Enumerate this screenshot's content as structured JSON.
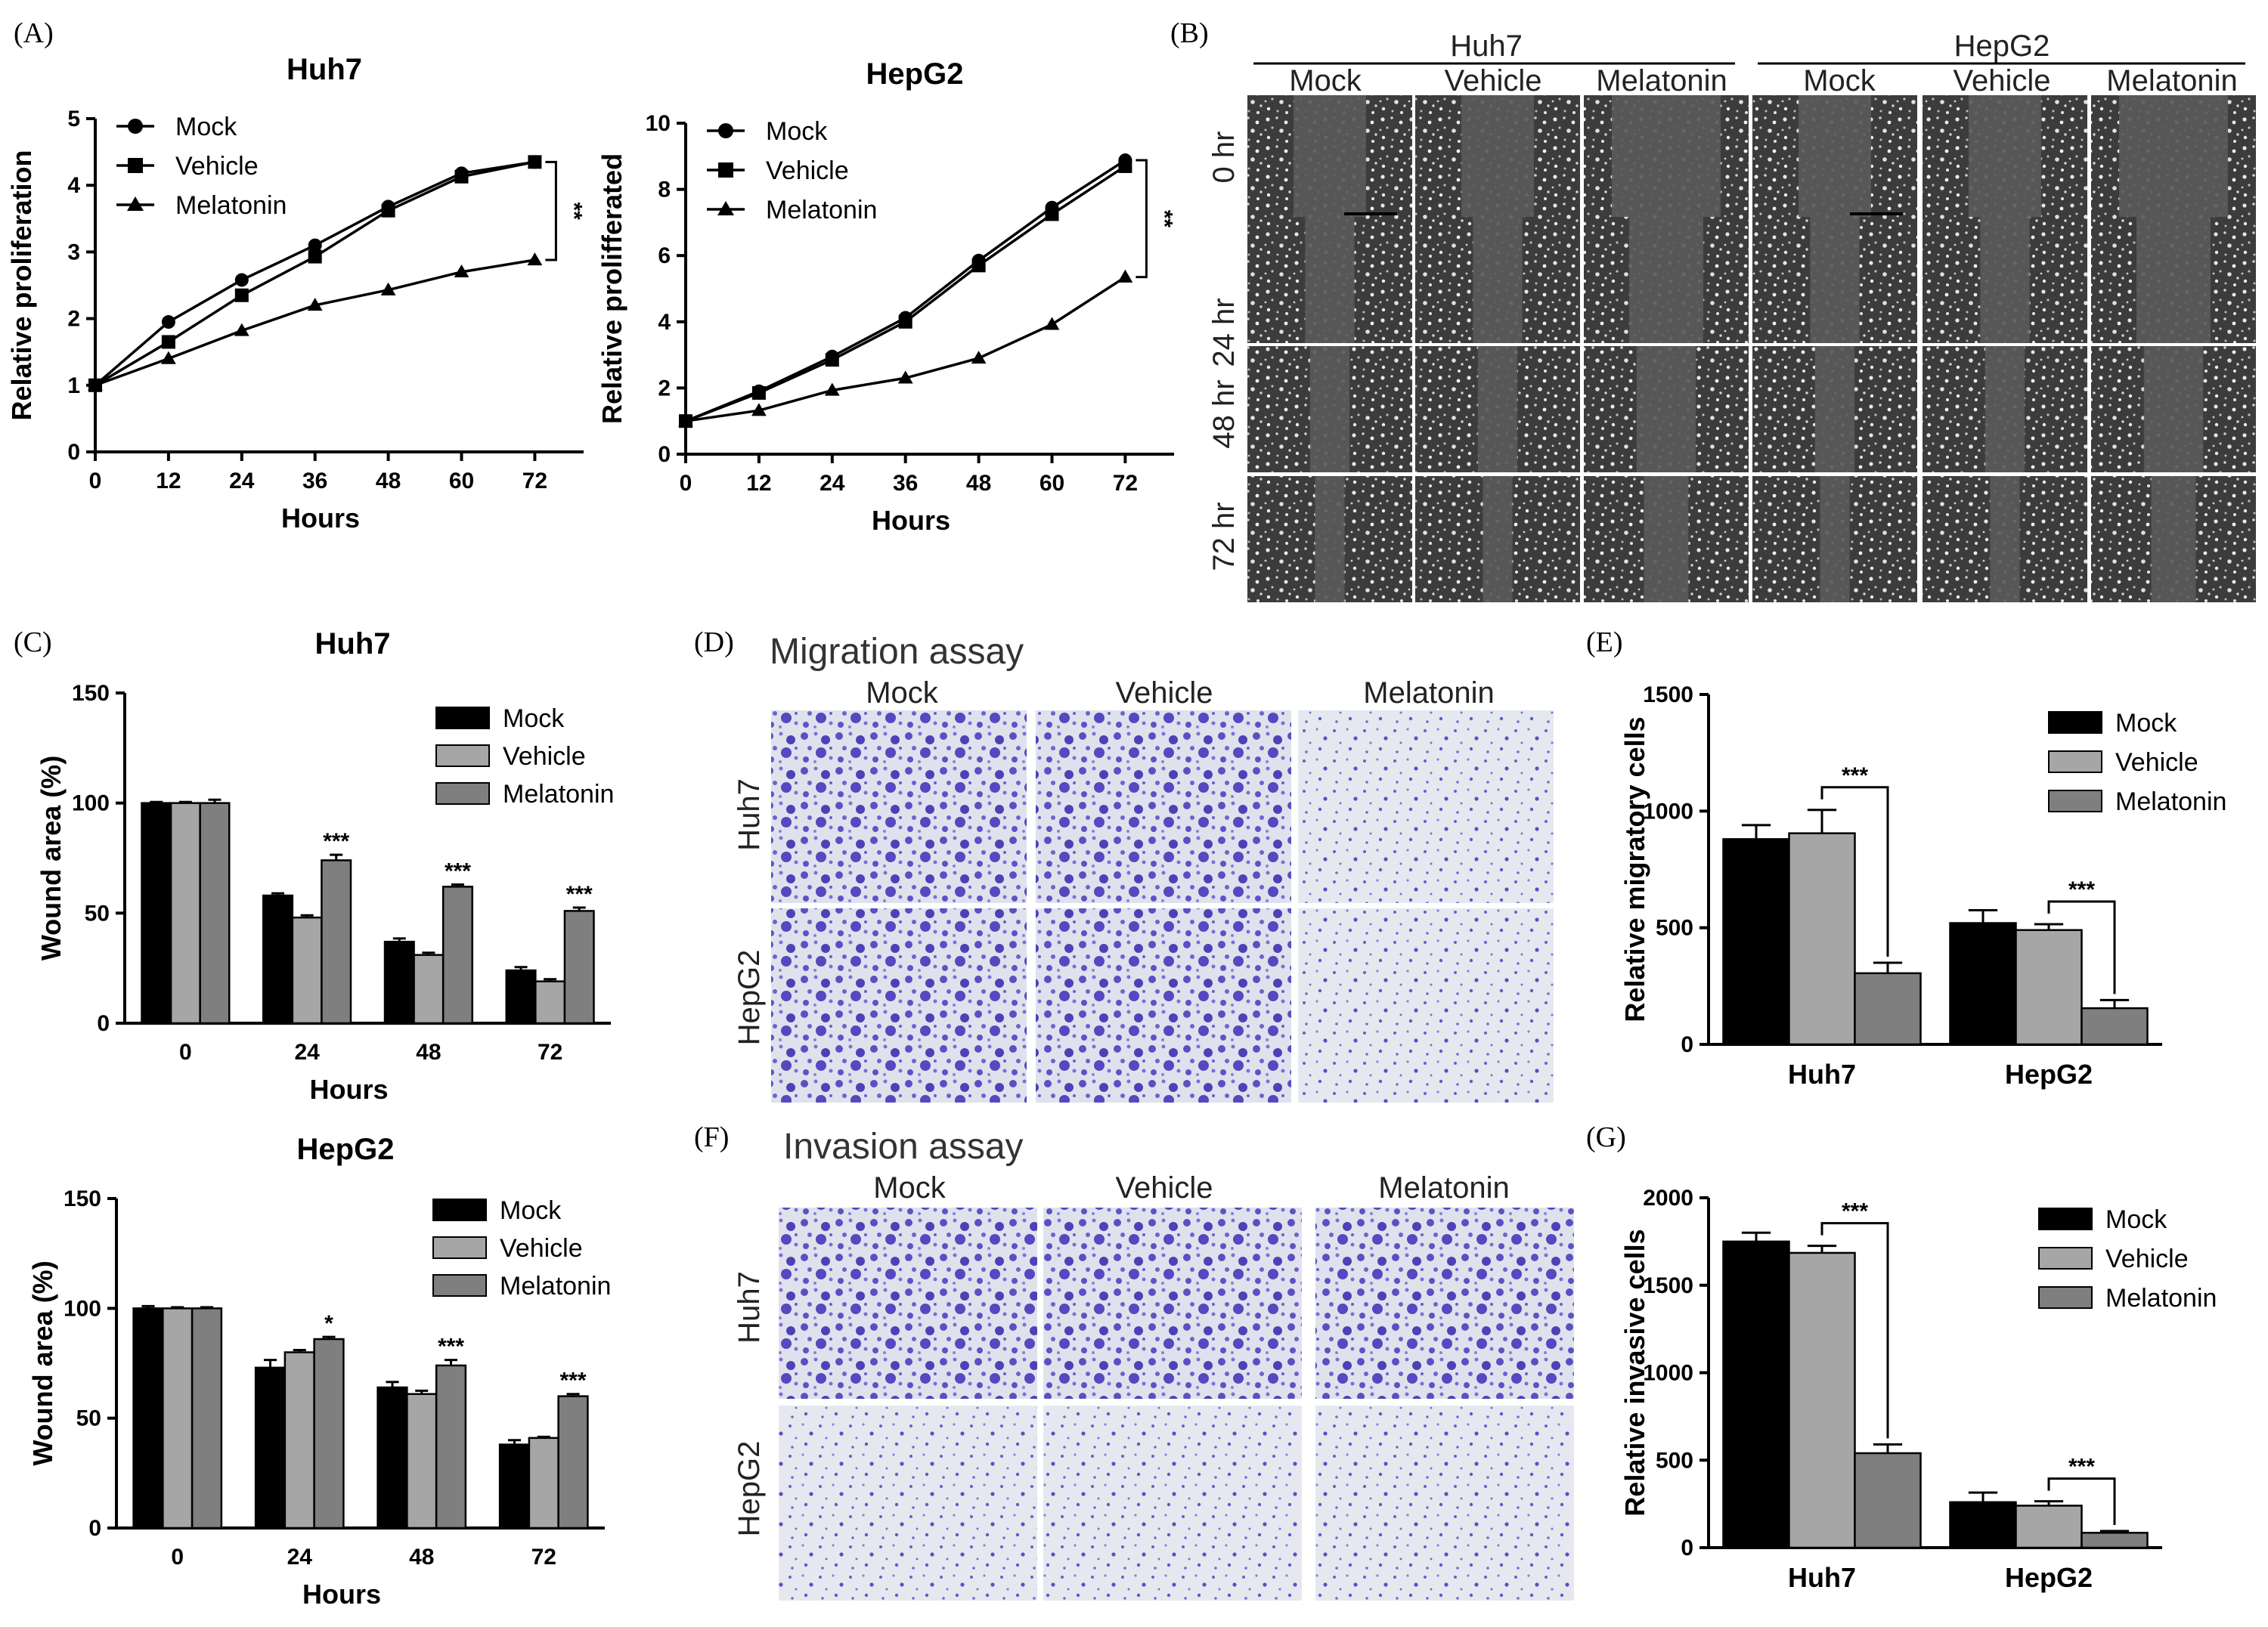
{
  "panel_labels": {
    "A": "(A)",
    "B": "(B)",
    "C": "(C)",
    "D": "(D)",
    "E": "(E)",
    "F": "(F)",
    "G": "(G)"
  },
  "colors": {
    "mock": "#000000",
    "vehicle": "#a6a6a6",
    "melatonin": "#7f7f7f",
    "stain": "#6a5acd",
    "scratch_bg": "#5a5a5a"
  },
  "panel_b": {
    "cell_lines": [
      "Huh7",
      "HepG2"
    ],
    "conditions": [
      "Mock",
      "Vehicle",
      "Melatonin",
      "Mock",
      "Vehicle",
      "Melatonin"
    ],
    "timepoints": [
      "0 hr",
      "24 hr",
      "48 hr",
      "72 hr"
    ]
  },
  "panel_d": {
    "title": "Migration assay",
    "columns": [
      "Mock",
      "Vehicle",
      "Melatonin"
    ],
    "rows": [
      "Huh7",
      "HepG2"
    ]
  },
  "panel_f": {
    "title": "Invasion assay",
    "columns": [
      "Mock",
      "Vehicle",
      "Melatonin"
    ],
    "rows": [
      "Huh7",
      "HepG2"
    ]
  },
  "chart_data": [
    {
      "id": "A-Huh7",
      "type": "line",
      "title": "Huh7",
      "xlabel": "Hours",
      "ylabel": "Relative  proliferation",
      "x": [
        0,
        12,
        24,
        36,
        48,
        60,
        72
      ],
      "xlim": [
        0,
        80
      ],
      "ylim": [
        0,
        5
      ],
      "yticks": [
        0,
        1,
        2,
        3,
        4,
        5
      ],
      "series": [
        {
          "name": "Mock",
          "marker": "circle",
          "values": [
            1.0,
            1.95,
            2.58,
            3.1,
            3.68,
            4.18,
            4.35
          ]
        },
        {
          "name": "Vehicle",
          "marker": "square",
          "values": [
            1.0,
            1.65,
            2.35,
            2.93,
            3.62,
            4.13,
            4.35
          ]
        },
        {
          "name": "Melatonin",
          "marker": "triangle",
          "values": [
            1.0,
            1.4,
            1.82,
            2.2,
            2.43,
            2.7,
            2.88
          ]
        }
      ],
      "significance": "**",
      "legend": "top-left"
    },
    {
      "id": "A-HepG2",
      "type": "line",
      "title": "HepG2",
      "xlabel": "Hours",
      "ylabel": "Relative  prolifferated",
      "x": [
        0,
        12,
        24,
        36,
        48,
        60,
        72
      ],
      "xlim": [
        0,
        80
      ],
      "ylim": [
        0,
        10
      ],
      "yticks": [
        0,
        2,
        4,
        6,
        8,
        10
      ],
      "series": [
        {
          "name": "Mock",
          "marker": "circle",
          "values": [
            1.0,
            1.9,
            2.95,
            4.12,
            5.85,
            7.45,
            8.88
          ]
        },
        {
          "name": "Vehicle",
          "marker": "square",
          "values": [
            1.0,
            1.85,
            2.85,
            4.0,
            5.7,
            7.25,
            8.7
          ]
        },
        {
          "name": "Melatonin",
          "marker": "triangle",
          "values": [
            1.0,
            1.32,
            1.93,
            2.3,
            2.9,
            3.92,
            5.35
          ]
        }
      ],
      "significance": "**",
      "legend": "top-left"
    },
    {
      "id": "C-Huh7",
      "type": "bar",
      "title": "Huh7",
      "xlabel": "Hours",
      "ylabel": "Wound area (%)",
      "categories": [
        "0",
        "24",
        "48",
        "72"
      ],
      "ylim": [
        0,
        150
      ],
      "yticks": [
        0,
        50,
        100,
        150
      ],
      "series": [
        {
          "name": "Mock",
          "values": [
            100,
            58,
            37,
            24
          ],
          "errors": [
            0.5,
            1,
            1.5,
            1.5
          ]
        },
        {
          "name": "Vehicle",
          "values": [
            100,
            48,
            31,
            19
          ],
          "errors": [
            0.5,
            1,
            1,
            1
          ]
        },
        {
          "name": "Melatonin",
          "values": [
            100,
            74,
            62,
            51
          ],
          "errors": [
            1.5,
            2.5,
            1,
            1.5
          ]
        }
      ],
      "significance": [
        "",
        "***",
        "***",
        "***"
      ],
      "legend": "top-right"
    },
    {
      "id": "C-HepG2",
      "type": "bar",
      "title": "HepG2",
      "xlabel": "Hours",
      "ylabel": "Wound area (%)",
      "categories": [
        "0",
        "24",
        "48",
        "72"
      ],
      "ylim": [
        0,
        150
      ],
      "yticks": [
        0,
        50,
        100,
        150
      ],
      "series": [
        {
          "name": "Mock",
          "values": [
            100,
            73,
            64,
            38
          ],
          "errors": [
            1,
            3.5,
            2.5,
            2
          ]
        },
        {
          "name": "Vehicle",
          "values": [
            100,
            80,
            61,
            41
          ],
          "errors": [
            0.5,
            1,
            1.5,
            0.5
          ]
        },
        {
          "name": "Melatonin",
          "values": [
            100,
            86,
            74,
            60
          ],
          "errors": [
            0.5,
            1,
            2.5,
            1
          ]
        }
      ],
      "significance": [
        "",
        "*",
        "***",
        "***"
      ],
      "legend": "top-right"
    },
    {
      "id": "E",
      "type": "bar",
      "xlabel": "",
      "ylabel": "Relative  migratory cells",
      "categories": [
        "Huh7",
        "HepG2"
      ],
      "ylim": [
        0,
        1500
      ],
      "yticks": [
        0,
        500,
        1000,
        1500
      ],
      "series": [
        {
          "name": "Mock",
          "values": [
            880,
            520
          ],
          "errors": [
            60,
            55
          ]
        },
        {
          "name": "Vehicle",
          "values": [
            905,
            490
          ],
          "errors": [
            100,
            25
          ]
        },
        {
          "name": "Melatonin",
          "values": [
            305,
            155
          ],
          "errors": [
            45,
            35
          ]
        }
      ],
      "significance": [
        "***",
        "***"
      ],
      "legend": "top-right"
    },
    {
      "id": "G",
      "type": "bar",
      "xlabel": "",
      "ylabel": "Relative  invasive cells",
      "categories": [
        "Huh7",
        "HepG2"
      ],
      "ylim": [
        0,
        2000
      ],
      "yticks": [
        0,
        500,
        1000,
        1500,
        2000
      ],
      "series": [
        {
          "name": "Mock",
          "values": [
            1750,
            260
          ],
          "errors": [
            50,
            55
          ]
        },
        {
          "name": "Vehicle",
          "values": [
            1685,
            240
          ],
          "errors": [
            40,
            25
          ]
        },
        {
          "name": "Melatonin",
          "values": [
            540,
            85
          ],
          "errors": [
            50,
            10
          ]
        }
      ],
      "significance": [
        "***",
        "***"
      ],
      "legend": "top-right"
    }
  ]
}
